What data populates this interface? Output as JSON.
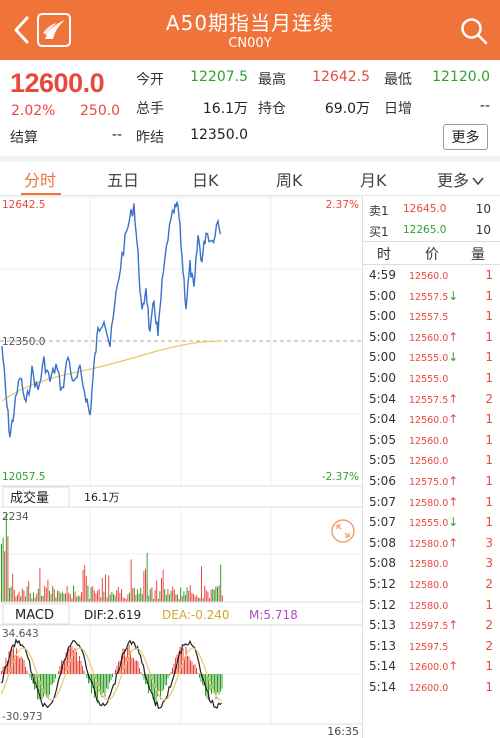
{
  "header": {
    "title": "A50期指当月连续",
    "code": "CN00Y"
  },
  "quote": {
    "price": "12600.0",
    "pct": "2.02%",
    "change": "250.0",
    "rows": [
      [
        {
          "l": "今开",
          "v": "12207.5",
          "c": "green"
        },
        {
          "l": "最高",
          "v": "12642.5",
          "c": "red"
        },
        {
          "l": "最低",
          "v": "12120.0",
          "c": "green"
        }
      ],
      [
        {
          "l": "总手",
          "v": "16.1万",
          "c": "dark"
        },
        {
          "l": "持仓",
          "v": "69.0万",
          "c": "dark"
        },
        {
          "l": "日增",
          "v": "--",
          "c": "dark"
        }
      ],
      [
        {
          "l": "结算",
          "v": "--",
          "c": "dark"
        },
        {
          "l": "昨结",
          "v": "12350.0",
          "c": "dark"
        }
      ]
    ],
    "more": "更多"
  },
  "tabs": [
    "分时",
    "五日",
    "日K",
    "周K",
    "月K",
    "更多"
  ],
  "chart": {
    "top_price": "12642.5",
    "top_pct": "2.37%",
    "mid_price": "12350.0",
    "bottom_price": "12057.5",
    "bottom_pct": "-2.37%",
    "vol_label": "成交量",
    "vol_value": "16.1万",
    "vol_max": "2234",
    "macd_label": "MACD",
    "dif": "DIF:2.619",
    "dea": "DEA:-0.240",
    "m": "M:5.718",
    "macd_top": "34.643",
    "macd_bottom": "-30.973",
    "end_time": "16:35"
  },
  "orderbook": {
    "sell_label": "卖1",
    "sell_price": "12645.0",
    "sell_qty": "10",
    "buy_label": "买1",
    "buy_price": "12265.0",
    "buy_qty": "10",
    "head": [
      "时",
      "价",
      "量"
    ]
  },
  "ticks": [
    {
      "t": "4:59",
      "p": "12560.0",
      "v": "1",
      "d": ""
    },
    {
      "t": "5:00",
      "p": "12557.5",
      "v": "1",
      "d": "down"
    },
    {
      "t": "5:00",
      "p": "12557.5",
      "v": "1",
      "d": ""
    },
    {
      "t": "5:00",
      "p": "12560.0",
      "v": "1",
      "d": "up"
    },
    {
      "t": "5:00",
      "p": "12555.0",
      "v": "1",
      "d": "down"
    },
    {
      "t": "5:00",
      "p": "12555.0",
      "v": "1",
      "d": ""
    },
    {
      "t": "5:04",
      "p": "12557.5",
      "v": "2",
      "d": "up"
    },
    {
      "t": "5:04",
      "p": "12560.0",
      "v": "1",
      "d": "up"
    },
    {
      "t": "5:05",
      "p": "12560.0",
      "v": "1",
      "d": ""
    },
    {
      "t": "5:05",
      "p": "12560.0",
      "v": "1",
      "d": ""
    },
    {
      "t": "5:06",
      "p": "12575.0",
      "v": "1",
      "d": "up"
    },
    {
      "t": "5:07",
      "p": "12580.0",
      "v": "1",
      "d": "up"
    },
    {
      "t": "5:07",
      "p": "12555.0",
      "v": "1",
      "d": "down"
    },
    {
      "t": "5:08",
      "p": "12580.0",
      "v": "3",
      "d": "up"
    },
    {
      "t": "5:08",
      "p": "12580.0",
      "v": "3",
      "d": ""
    },
    {
      "t": "5:12",
      "p": "12580.0",
      "v": "2",
      "d": ""
    },
    {
      "t": "5:12",
      "p": "12580.0",
      "v": "1",
      "d": ""
    },
    {
      "t": "5:13",
      "p": "12597.5",
      "v": "2",
      "d": "up"
    },
    {
      "t": "5:13",
      "p": "12597.5",
      "v": "2",
      "d": ""
    },
    {
      "t": "5:14",
      "p": "12600.0",
      "v": "1",
      "d": "up"
    },
    {
      "t": "5:14",
      "p": "12600.0",
      "v": "1",
      "d": ""
    }
  ],
  "colors": {
    "accent": "#f0733a",
    "up": "#e8493f",
    "down": "#33a02c",
    "line": "#3a72c9",
    "avg": "#e9c870"
  }
}
